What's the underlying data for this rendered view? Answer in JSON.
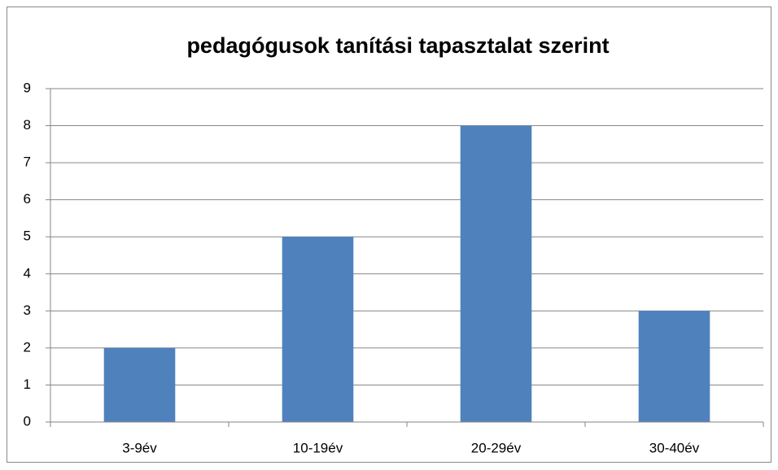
{
  "chart_data": {
    "type": "bar",
    "title": "pedagógusok tanítási tapasztalat szerint",
    "categories": [
      "3-9év",
      "10-19év",
      "20-29év",
      "30-40év"
    ],
    "values": [
      2,
      5,
      8,
      3
    ],
    "color": "#4f81bd",
    "ylim": [
      0,
      9
    ],
    "yticks": [
      0,
      1,
      2,
      3,
      4,
      5,
      6,
      7,
      8,
      9
    ],
    "grid": true
  }
}
